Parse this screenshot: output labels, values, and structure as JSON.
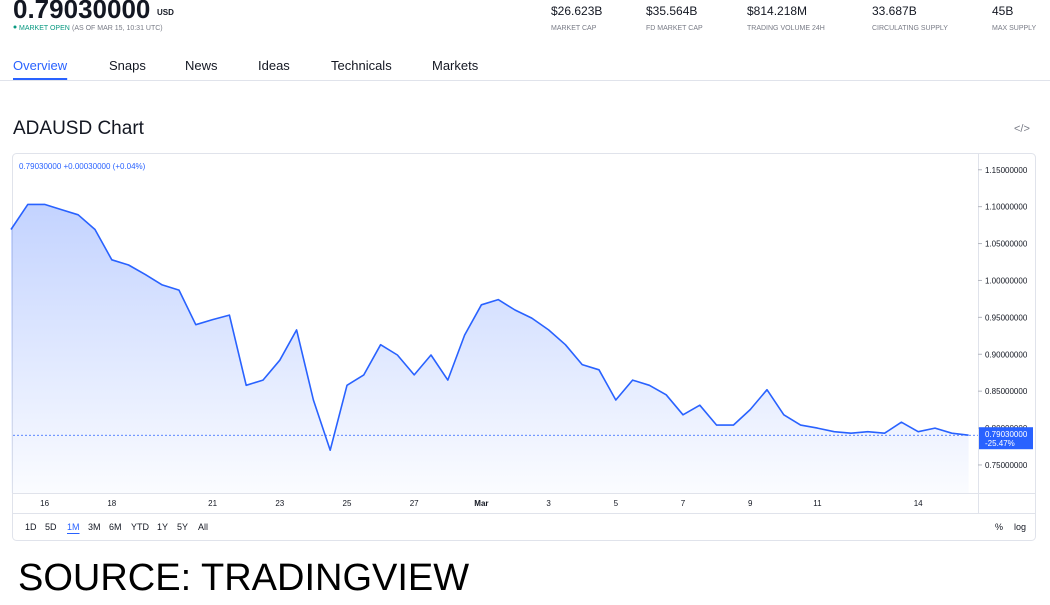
{
  "header": {
    "price": "0.79030000",
    "currency": "USD",
    "status": "MARKET OPEN",
    "status_time": "(AS OF MAR 15, 10:31 UTC)",
    "stats": [
      {
        "value": "$26.623B",
        "label": "MARKET CAP"
      },
      {
        "value": "$35.564B",
        "label": "FD MARKET CAP"
      },
      {
        "value": "$814.218M",
        "label": "TRADING VOLUME 24H"
      },
      {
        "value": "33.687B",
        "label": "CIRCULATING SUPPLY"
      },
      {
        "value": "45B",
        "label": "MAX SUPPLY"
      }
    ]
  },
  "tabs": [
    "Overview",
    "Snaps",
    "News",
    "Ideas",
    "Technicals",
    "Markets"
  ],
  "chart_title": "ADAUSD Chart",
  "legend": "0.79030000 +0.00030000 (+0.04%)",
  "chart_data": {
    "type": "area",
    "categories": [
      null,
      null,
      "16",
      null,
      null,
      null,
      "18",
      null,
      null,
      null,
      null,
      null,
      "21",
      null,
      null,
      null,
      "23",
      null,
      null,
      null,
      "25",
      null,
      null,
      null,
      "27",
      null,
      null,
      null,
      "Mar",
      null,
      null,
      null,
      "3",
      null,
      null,
      null,
      "5",
      null,
      null,
      null,
      "7",
      null,
      null,
      null,
      "9",
      null,
      null,
      null,
      "11",
      null,
      null,
      null,
      null,
      null,
      "14",
      null,
      null,
      null
    ],
    "series": [
      {
        "name": "ADAUSD",
        "color": "#2962ff",
        "values": [
          1.069,
          1.103,
          1.103,
          1.096,
          1.089,
          1.069,
          1.028,
          1.021,
          1.008,
          0.994,
          0.987,
          0.94,
          0.947,
          0.953,
          0.858,
          0.865,
          0.892,
          0.933,
          0.838,
          0.77,
          0.858,
          0.872,
          0.913,
          0.899,
          0.872,
          0.899,
          0.865,
          0.926,
          0.967,
          0.974,
          0.96,
          0.949,
          0.933,
          0.913,
          0.886,
          0.879,
          0.838,
          0.865,
          0.858,
          0.845,
          0.818,
          0.831,
          0.804,
          0.804,
          0.825,
          0.852,
          0.818,
          0.804,
          0.8,
          0.795,
          0.793,
          0.795,
          0.793,
          0.808,
          0.795,
          0.8,
          0.793,
          0.7903
        ]
      }
    ],
    "ylim": [
      0.712,
      1.17
    ],
    "yticks": [
      {
        "value": 0.75,
        "label": "0.75000000"
      },
      {
        "value": 0.8,
        "label": "0.80000000"
      },
      {
        "value": 0.85,
        "label": "0.85000000"
      },
      {
        "value": 0.9,
        "label": "0.90000000"
      },
      {
        "value": 0.95,
        "label": "0.95000000"
      },
      {
        "value": 1.0,
        "label": "1.00000000"
      },
      {
        "value": 1.05,
        "label": "1.05000000"
      },
      {
        "value": 1.1,
        "label": "1.10000000"
      },
      {
        "value": 1.15,
        "label": "1.15000000"
      }
    ],
    "price_line": {
      "value": 0.7903,
      "label": "0.79030000",
      "change": "-25.47%"
    }
  },
  "ranges": [
    "1D",
    "5D",
    "1M",
    "3M",
    "6M",
    "YTD",
    "1Y",
    "5Y",
    "All"
  ],
  "scale_options": [
    "%",
    "log"
  ],
  "source": "SOURCE: TRADINGVIEW"
}
